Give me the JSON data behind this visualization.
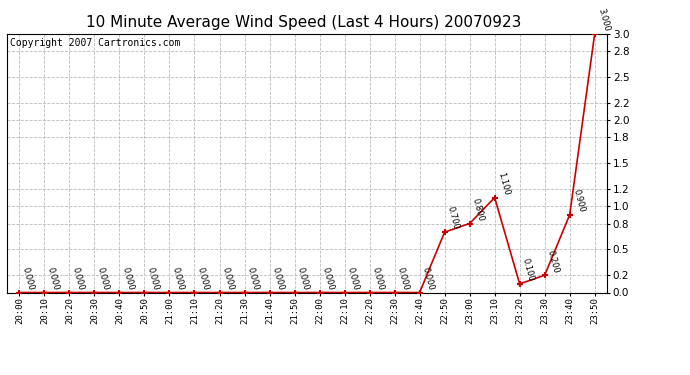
{
  "title": "10 Minute Average Wind Speed (Last 4 Hours) 20070923",
  "copyright": "Copyright 2007 Cartronics.com",
  "x_labels": [
    "20:00",
    "20:10",
    "20:20",
    "20:30",
    "20:40",
    "20:50",
    "21:00",
    "21:10",
    "21:20",
    "21:30",
    "21:40",
    "21:50",
    "22:00",
    "22:10",
    "22:20",
    "22:30",
    "22:40",
    "22:50",
    "23:00",
    "23:10",
    "23:20",
    "23:30",
    "23:40",
    "23:50"
  ],
  "y_values": [
    0.0,
    0.0,
    0.0,
    0.0,
    0.0,
    0.0,
    0.0,
    0.0,
    0.0,
    0.0,
    0.0,
    0.0,
    0.0,
    0.0,
    0.0,
    0.0,
    0.0,
    0.7,
    0.8,
    1.1,
    0.1,
    0.2,
    0.9,
    3.0
  ],
  "point_labels": [
    "0.000",
    "0.000",
    "0.000",
    "0.000",
    "0.000",
    "0.000",
    "0.000",
    "0.000",
    "0.000",
    "0.000",
    "0.000",
    "0.000",
    "0.000",
    "0.000",
    "0.000",
    "0.000",
    "0.000",
    "0.700",
    "0.800",
    "1.100",
    "0.100",
    "0.200",
    "0.900",
    "3.000"
  ],
  "line_color": "#cc0000",
  "marker_color": "#cc0000",
  "bg_color": "#ffffff",
  "plot_bg_color": "#ffffff",
  "grid_color": "#bbbbbb",
  "title_fontsize": 11,
  "copyright_fontsize": 7,
  "label_fontsize": 6,
  "xtick_fontsize": 6.5,
  "ytick_fontsize": 7.5,
  "ylim": [
    0.0,
    3.0
  ],
  "yticks": [
    0.0,
    0.2,
    0.5,
    0.8,
    1.0,
    1.2,
    1.5,
    1.8,
    2.0,
    2.2,
    2.5,
    2.8,
    3.0
  ]
}
